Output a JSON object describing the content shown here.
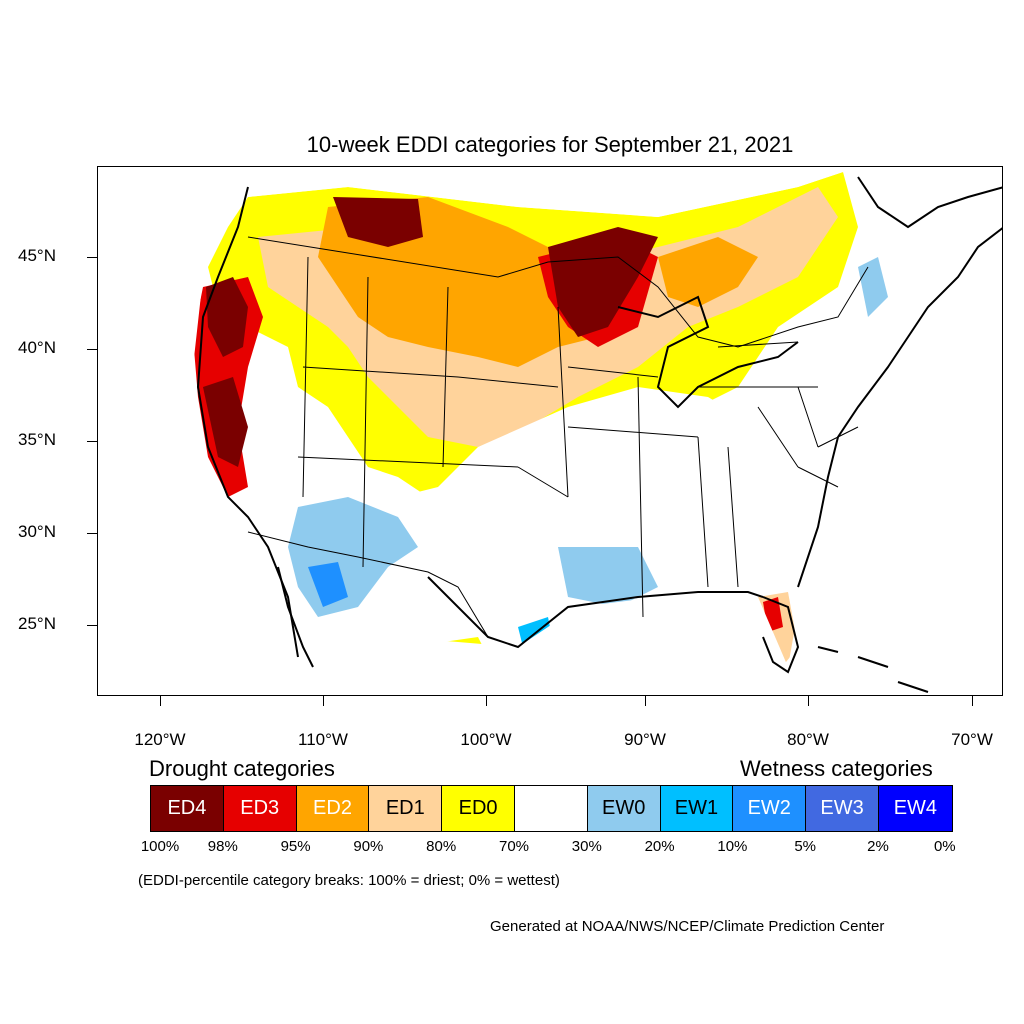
{
  "title": "10-week EDDI categories for September 21, 2021",
  "latitude_labels": [
    "45°N",
    "40°N",
    "35°N",
    "30°N",
    "25°N"
  ],
  "longitude_labels": [
    "120°W",
    "110°W",
    "100°W",
    "90°W",
    "80°W",
    "70°W"
  ],
  "legend": {
    "drought_heading": "Drought categories",
    "wetness_heading": "Wetness categories",
    "categories": [
      {
        "label": "ED4",
        "color": "#7a0000",
        "text_color": "#ffffff"
      },
      {
        "label": "ED3",
        "color": "#e60000",
        "text_color": "#ffffff"
      },
      {
        "label": "ED2",
        "color": "#ffa500",
        "text_color": "#ffffff"
      },
      {
        "label": "ED1",
        "color": "#ffd39b",
        "text_color": "#000000"
      },
      {
        "label": "ED0",
        "color": "#ffff00",
        "text_color": "#000000"
      },
      {
        "label": "",
        "color": "#ffffff",
        "text_color": "#000000"
      },
      {
        "label": "EW0",
        "color": "#8fcbee",
        "text_color": "#000000"
      },
      {
        "label": "EW1",
        "color": "#00bfff",
        "text_color": "#000000"
      },
      {
        "label": "EW2",
        "color": "#1e90ff",
        "text_color": "#ffffff"
      },
      {
        "label": "EW3",
        "color": "#4169e1",
        "text_color": "#ffffff"
      },
      {
        "label": "EW4",
        "color": "#0000ff",
        "text_color": "#ffffff"
      }
    ],
    "percentiles": [
      "100%",
      "98%",
      "95%",
      "90%",
      "80%",
      "70%",
      "30%",
      "20%",
      "10%",
      "5%",
      "2%",
      "0%"
    ]
  },
  "note": "(EDDI-percentile category breaks: 100% = driest; 0% = wettest)",
  "credit": "Generated at NOAA/NWS/NCEP/Climate Prediction Center"
}
